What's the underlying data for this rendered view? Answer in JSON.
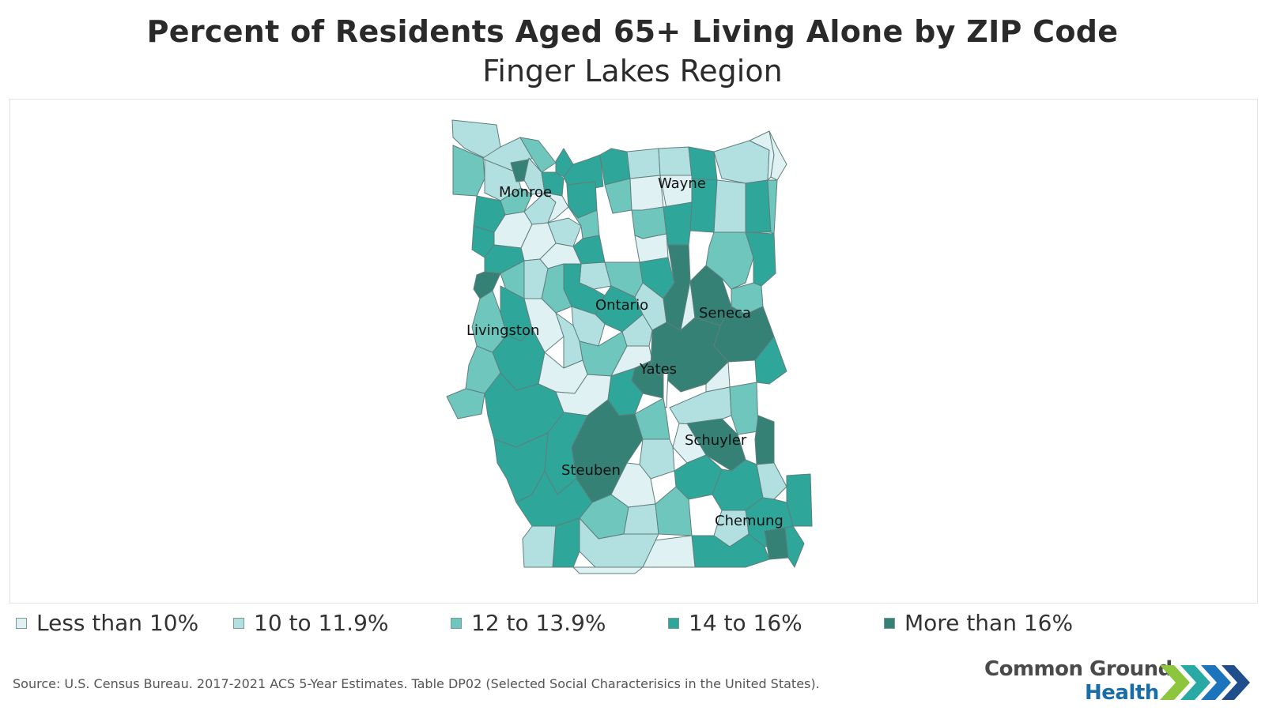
{
  "title": "Percent of Residents Aged 65+ Living Alone by ZIP Code",
  "subtitle": "Finger Lakes Region",
  "colors": {
    "less_than_10": "#dff1f3",
    "10_to_11_9": "#b2e0e1",
    "12_to_13_9": "#6ec6bd",
    "14_to_16": "#2ea699",
    "more_than_16": "#358176",
    "border": "#5f7f7d"
  },
  "legend": [
    {
      "label": "Less than 10%",
      "color": "#dff1f3"
    },
    {
      "label": "10 to 11.9%",
      "color": "#b2e0e1"
    },
    {
      "label": "12 to 13.9%",
      "color": "#6ec6bd"
    },
    {
      "label": "14 to 16%",
      "color": "#2ea699"
    },
    {
      "label": "More than 16%",
      "color": "#358176"
    }
  ],
  "counties": [
    {
      "name": "Monroe"
    },
    {
      "name": "Wayne"
    },
    {
      "name": "Ontario"
    },
    {
      "name": "Seneca"
    },
    {
      "name": "Livingston"
    },
    {
      "name": "Yates"
    },
    {
      "name": "Schuyler"
    },
    {
      "name": "Steuben"
    },
    {
      "name": "Chemung"
    }
  ],
  "source": "Source: U.S. Census Bureau. 2017-2021 ACS 5-Year Estimates. Table DP02 (Selected Social Characterisics in the United States).",
  "logo": {
    "line1": "Common Ground",
    "line2": "Health"
  }
}
